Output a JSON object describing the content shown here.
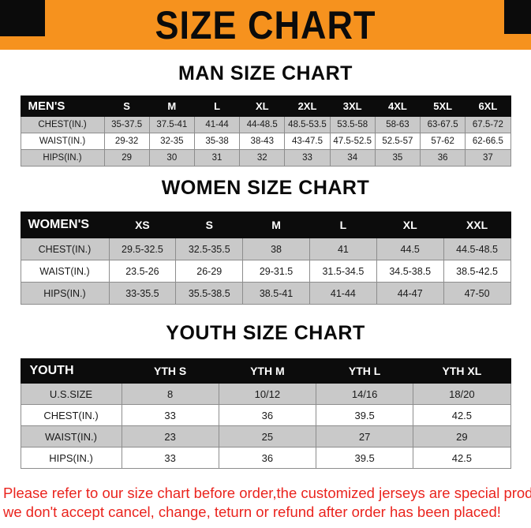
{
  "colors": {
    "banner_orange": "#F6921E",
    "header_black": "#0C0C0C",
    "row_gray": "#C9C9C9",
    "disclaimer_red": "#EA241E"
  },
  "banner": {
    "title": "SIZE CHART"
  },
  "sections": [
    {
      "heading": "MAN SIZE CHART",
      "table": {
        "header": [
          "MEN'S",
          "S",
          "M",
          "L",
          "XL",
          "2XL",
          "3XL",
          "4XL",
          "5XL",
          "6XL"
        ],
        "rows": [
          [
            "CHEST(IN.)",
            "35-37.5",
            "37.5-41",
            "41-44",
            "44-48.5",
            "48.5-53.5",
            "53.5-58",
            "58-63",
            "63-67.5",
            "67.5-72"
          ],
          [
            "WAIST(IN.)",
            "29-32",
            "32-35",
            "35-38",
            "38-43",
            "43-47.5",
            "47.5-52.5",
            "52.5-57",
            "57-62",
            "62-66.5"
          ],
          [
            "HIPS(IN.)",
            "29",
            "30",
            "31",
            "32",
            "33",
            "34",
            "35",
            "36",
            "37"
          ]
        ]
      }
    },
    {
      "heading": "WOMEN SIZE CHART",
      "table": {
        "header": [
          "WOMEN'S",
          "XS",
          "S",
          "M",
          "L",
          "XL",
          "XXL"
        ],
        "rows": [
          [
            "CHEST(IN.)",
            "29.5-32.5",
            "32.5-35.5",
            "38",
            "41",
            "44.5",
            "44.5-48.5"
          ],
          [
            "WAIST(IN.)",
            "23.5-26",
            "26-29",
            "29-31.5",
            "31.5-34.5",
            "34.5-38.5",
            "38.5-42.5"
          ],
          [
            "HIPS(IN.)",
            "33-35.5",
            "35.5-38.5",
            "38.5-41",
            "41-44",
            "44-47",
            "47-50"
          ]
        ]
      }
    },
    {
      "heading": "YOUTH SIZE CHART",
      "table": {
        "header": [
          "YOUTH",
          "YTH S",
          "YTH M",
          "YTH L",
          "YTH XL"
        ],
        "rows": [
          [
            "U.S.SIZE",
            "8",
            "10/12",
            "14/16",
            "18/20"
          ],
          [
            "CHEST(IN.)",
            "33",
            "36",
            "39.5",
            "42.5"
          ],
          [
            "WAIST(IN.)",
            "23",
            "25",
            "27",
            "29"
          ],
          [
            "HIPS(IN.)",
            "33",
            "36",
            "39.5",
            "42.5"
          ]
        ]
      }
    }
  ],
  "disclaimer": {
    "line1": "Please refer to our size chart before order,the customized jerseys are special products,",
    "line2": "we don't accept cancel, change, teturn or refund after order has been placed!"
  }
}
